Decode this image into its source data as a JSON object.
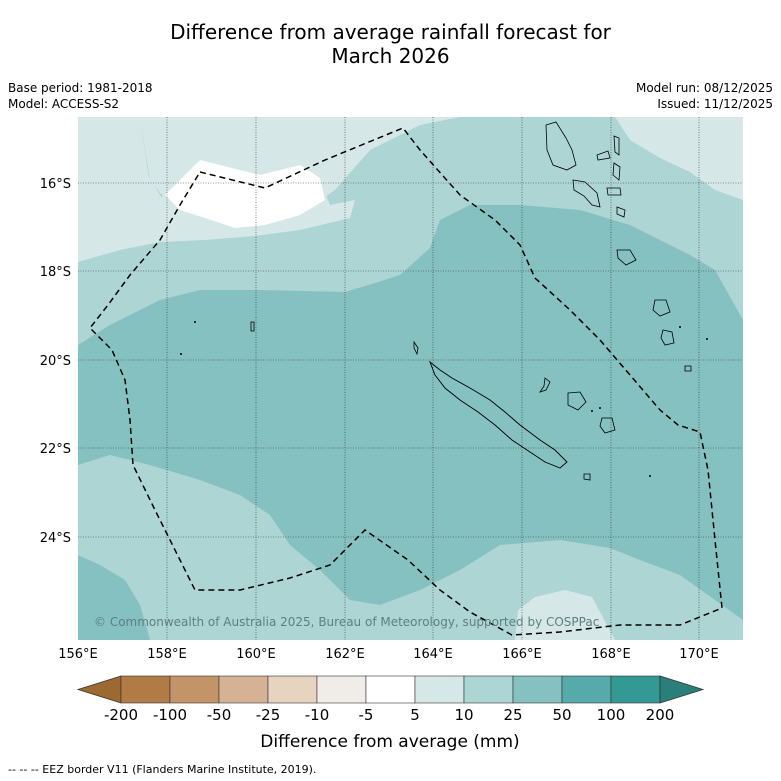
{
  "title_line1": "Difference from average rainfall forecast for",
  "title_line2": "March 2026",
  "base_period": "Base period: 1981-2018",
  "model": "Model: ACCESS-S2",
  "model_run": "Model run: 08/12/2025",
  "issued": "Issued: 11/12/2025",
  "copyright": "© Commonwealth of Australia 2025, Bureau of Meteorology, supported by COSPPac",
  "lon_labels": [
    "156°E",
    "158°E",
    "160°E",
    "162°E",
    "164°E",
    "166°E",
    "168°E",
    "170°E"
  ],
  "lat_labels": [
    "16°S",
    "18°S",
    "20°S",
    "22°S",
    "24°S"
  ],
  "colorbar": {
    "title": "Difference from average (mm)",
    "ticks": [
      "-200",
      "-100",
      "-50",
      "-25",
      "-10",
      "-5",
      "5",
      "10",
      "25",
      "50",
      "100",
      "200"
    ],
    "colors": [
      "#9c6a30",
      "#b07b45",
      "#c39467",
      "#d4b293",
      "#e6d3c0",
      "#f0ece8",
      "#ffffff",
      "#d5e8e7",
      "#acd5d4",
      "#84c1c0",
      "#56abaa",
      "#349995",
      "#2a7f7b"
    ]
  },
  "footnote": "--  --  -- EEZ border V11 (Flanders Marine Institute, 2019).",
  "map_colors": {
    "z10": "#d5e8e7",
    "z25": "#acd5d4",
    "z50": "#84c1c0",
    "white": "#ffffff"
  }
}
